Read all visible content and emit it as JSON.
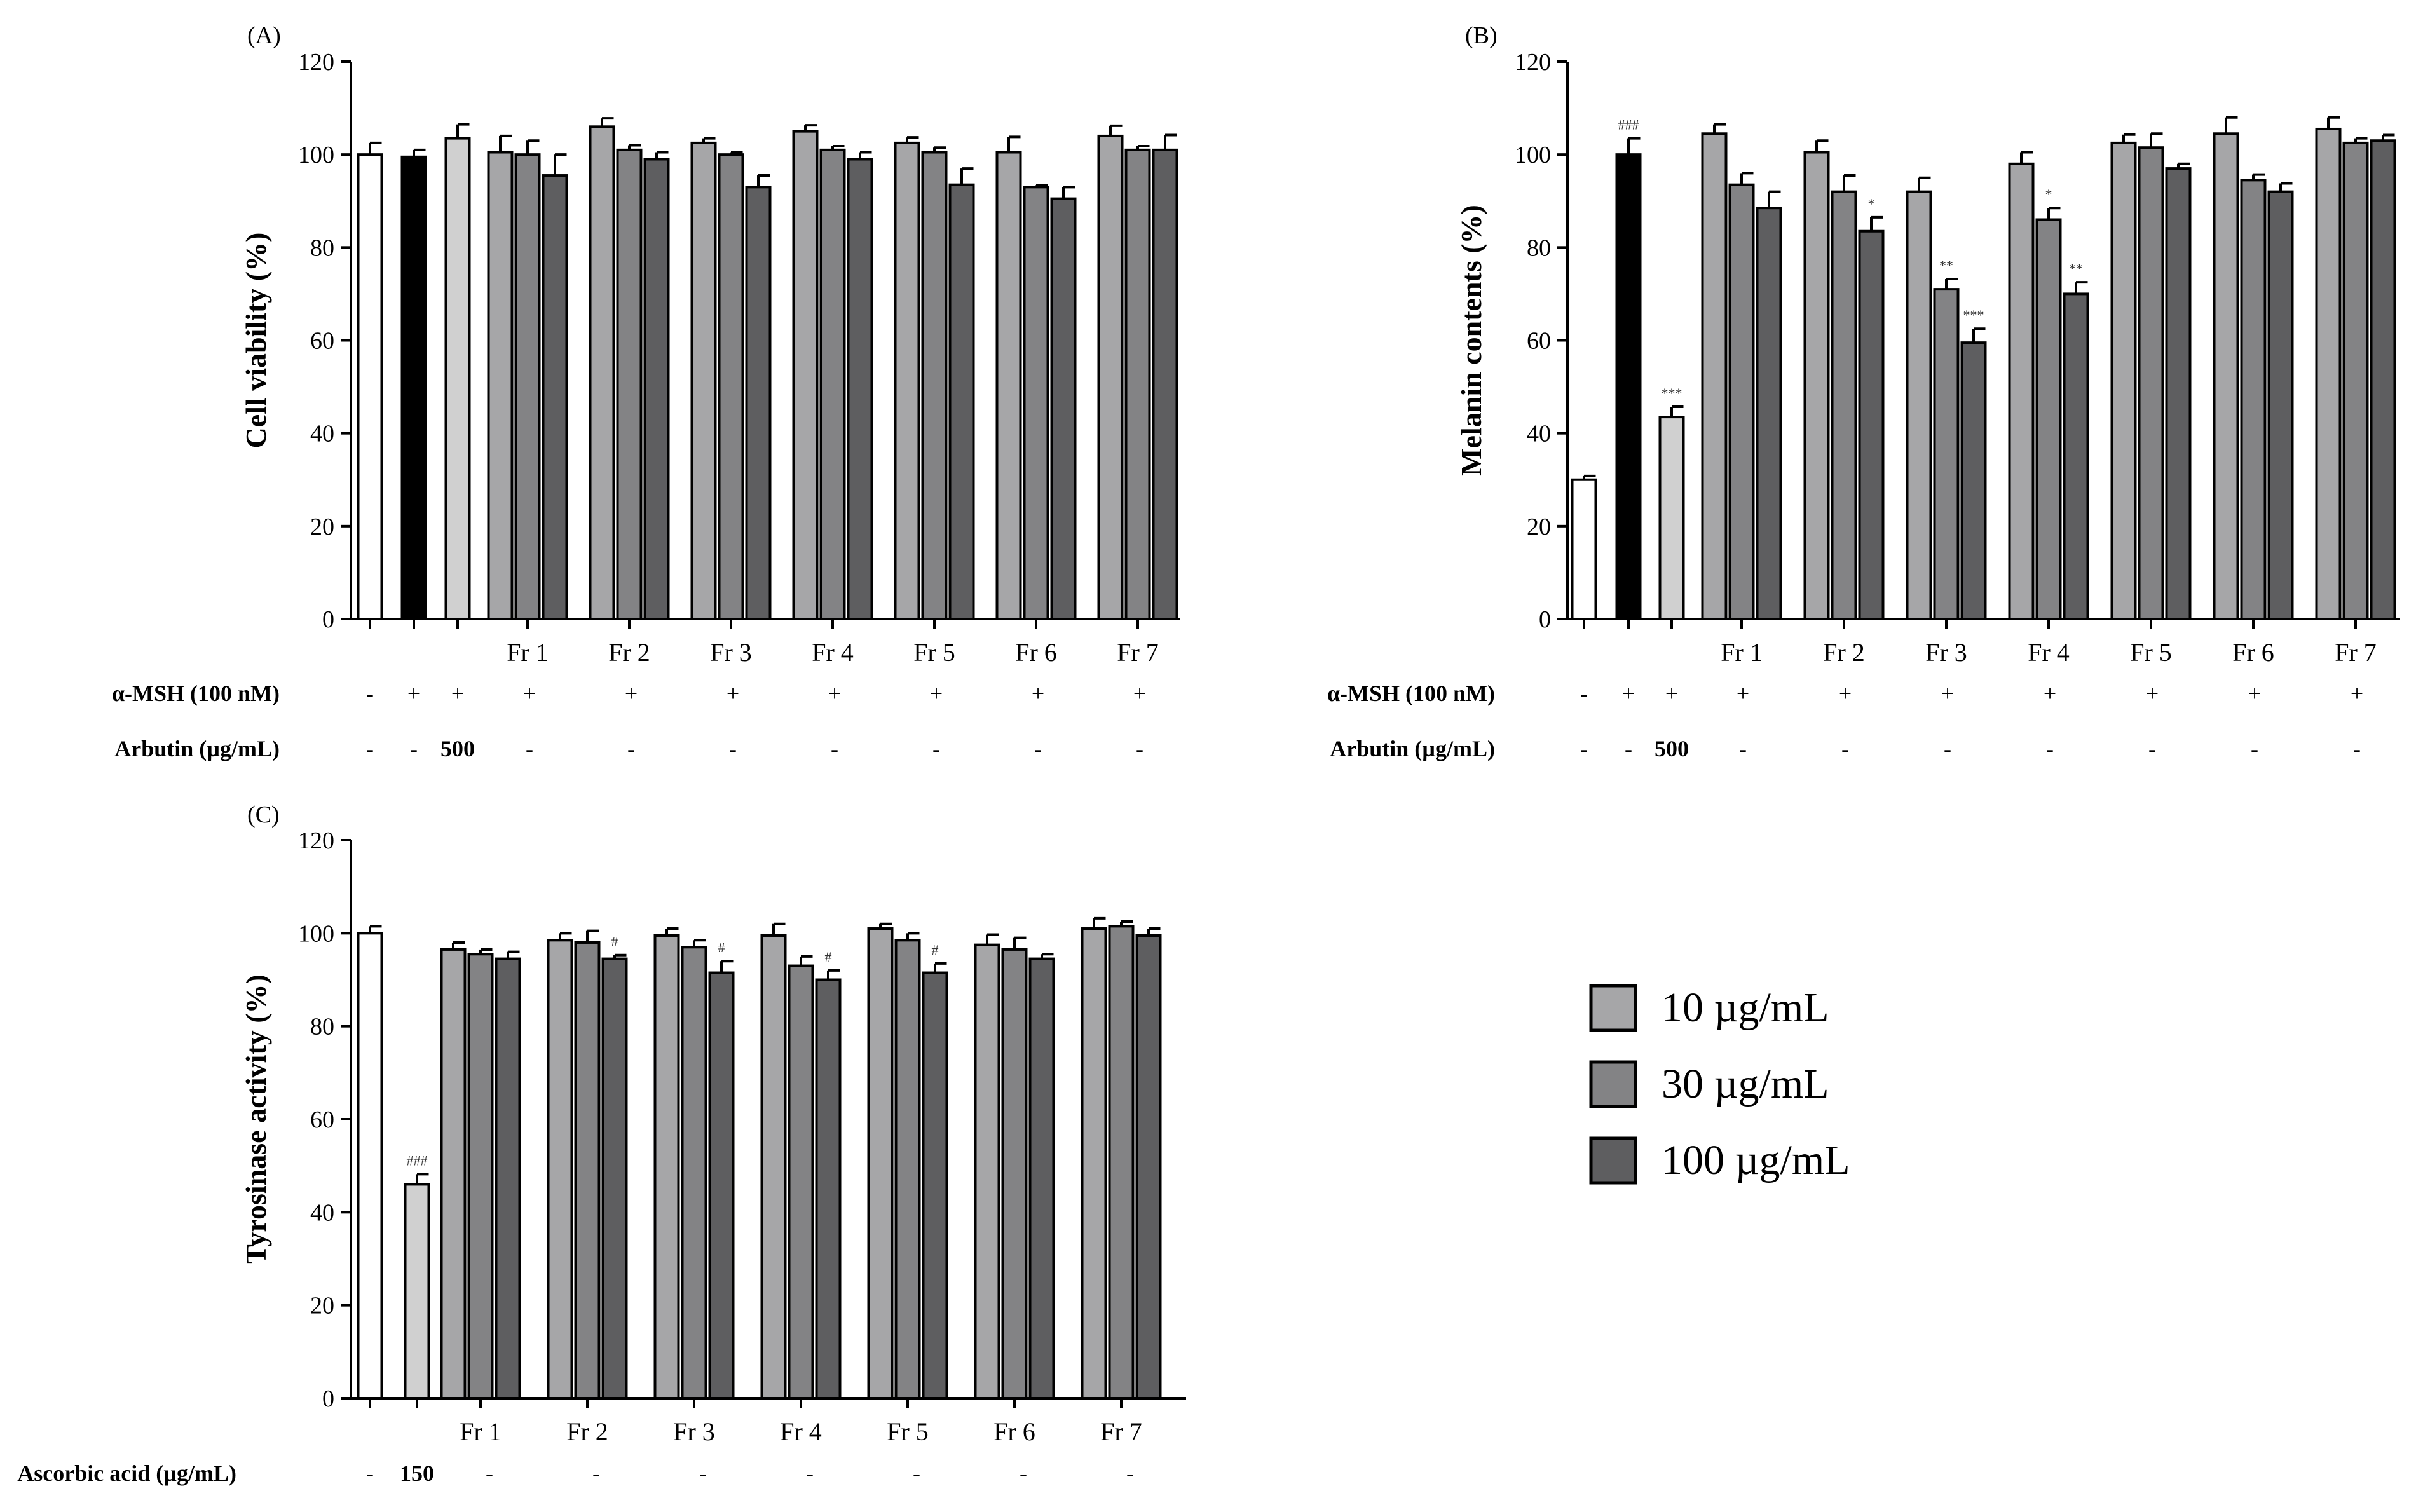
{
  "colors": {
    "control": "#ffffff",
    "msh": "#000000",
    "positive": "#d0d0d0",
    "c10": "#a6a6a8",
    "c30": "#838385",
    "c100": "#5e5e60",
    "axis": "#000000"
  },
  "legend": {
    "items": [
      {
        "label": "10 µg/mL",
        "color_key": "c10"
      },
      {
        "label": "30 µg/mL",
        "color_key": "c30"
      },
      {
        "label": "100 µg/mL",
        "color_key": "c100"
      }
    ]
  },
  "chart_data": [
    {
      "type": "bar",
      "panel_label": "(A)",
      "ylabel": "Cell viability (%)",
      "ylim": [
        0,
        120
      ],
      "yticks": [
        0,
        20,
        40,
        60,
        80,
        100,
        120
      ],
      "groups": [
        "Fr 1",
        "Fr 2",
        "Fr 3",
        "Fr 4",
        "Fr 5",
        "Fr 6",
        "Fr 7"
      ],
      "control_bars": [
        {
          "name": "control",
          "value": 100,
          "error": 2.5,
          "color_key": "control",
          "sig": ""
        },
        {
          "name": "alpha-MSH",
          "value": 99.5,
          "error": 1.5,
          "color_key": "msh",
          "sig": ""
        },
        {
          "name": "Arbutin 500",
          "value": 103.5,
          "error": 3.0,
          "color_key": "positive",
          "sig": ""
        }
      ],
      "series": [
        {
          "name": "10 µg/mL",
          "color_key": "c10",
          "values": [
            100.5,
            106,
            102.5,
            105,
            102.5,
            100.5,
            104
          ],
          "errors": [
            3.5,
            1.8,
            1.0,
            1.3,
            1.2,
            3.3,
            2.2
          ],
          "sig": [
            "",
            "",
            "",
            "",
            "",
            "",
            ""
          ]
        },
        {
          "name": "30 µg/mL",
          "color_key": "c30",
          "values": [
            100,
            101,
            100,
            101,
            100.5,
            93,
            101
          ],
          "errors": [
            3.0,
            1.0,
            0.5,
            0.8,
            1.0,
            0.4,
            0.8
          ],
          "sig": [
            "",
            "",
            "",
            "",
            "",
            "",
            ""
          ]
        },
        {
          "name": "100 µg/mL",
          "color_key": "c100",
          "values": [
            95.5,
            99,
            93,
            99,
            93.5,
            90.5,
            101
          ],
          "errors": [
            4.5,
            1.5,
            2.5,
            1.5,
            3.5,
            2.5,
            3.2
          ],
          "sig": [
            "",
            "",
            "",
            "",
            "",
            "",
            ""
          ]
        }
      ],
      "conditions": [
        {
          "label": "α-MSH (100 nM)",
          "values": [
            "-",
            "+",
            "+",
            "+",
            "+",
            "+",
            "+",
            "+",
            "+",
            "+"
          ]
        },
        {
          "label": "Arbutin (µg/mL)",
          "values": [
            "-",
            "-",
            "500",
            "-",
            "-",
            "-",
            "-",
            "-",
            "-",
            "-"
          ]
        }
      ]
    },
    {
      "type": "bar",
      "panel_label": "(B)",
      "ylabel": "Melanin contents (%)",
      "ylim": [
        0,
        120
      ],
      "yticks": [
        0,
        20,
        40,
        60,
        80,
        100,
        120
      ],
      "groups": [
        "Fr 1",
        "Fr 2",
        "Fr 3",
        "Fr 4",
        "Fr 5",
        "Fr 6",
        "Fr 7"
      ],
      "control_bars": [
        {
          "name": "control",
          "value": 30,
          "error": 0.8,
          "color_key": "control",
          "sig": ""
        },
        {
          "name": "alpha-MSH",
          "value": 100,
          "error": 3.5,
          "color_key": "msh",
          "sig": "###"
        },
        {
          "name": "Arbutin 500",
          "value": 43.5,
          "error": 2.2,
          "color_key": "positive",
          "sig": "***"
        }
      ],
      "series": [
        {
          "name": "10 µg/mL",
          "color_key": "c10",
          "values": [
            104.5,
            100.5,
            92,
            98,
            102.5,
            104.5,
            105.5
          ],
          "errors": [
            2.0,
            2.5,
            3.0,
            2.5,
            1.8,
            3.5,
            2.5
          ],
          "sig": [
            "",
            "",
            "",
            "",
            "",
            "",
            ""
          ]
        },
        {
          "name": "30 µg/mL",
          "color_key": "c30",
          "values": [
            93.5,
            92,
            71,
            86,
            101.5,
            94.5,
            102.5
          ],
          "errors": [
            2.5,
            3.5,
            2.2,
            2.5,
            3.0,
            1.2,
            1.0
          ],
          "sig": [
            "",
            "",
            "**",
            "*",
            "",
            "",
            ""
          ]
        },
        {
          "name": "100 µg/mL",
          "color_key": "c100",
          "values": [
            88.5,
            83.5,
            59.5,
            70,
            97,
            92,
            103
          ],
          "errors": [
            3.5,
            3.0,
            3.0,
            2.5,
            1.0,
            1.8,
            1.2
          ],
          "sig": [
            "",
            "*",
            "***",
            "**",
            "",
            "",
            ""
          ]
        }
      ],
      "conditions": [
        {
          "label": "α-MSH (100 nM)",
          "values": [
            "-",
            "+",
            "+",
            "+",
            "+",
            "+",
            "+",
            "+",
            "+",
            "+"
          ]
        },
        {
          "label": "Arbutin (µg/mL)",
          "values": [
            "-",
            "-",
            "500",
            "-",
            "-",
            "-",
            "-",
            "-",
            "-",
            "-"
          ]
        }
      ]
    },
    {
      "type": "bar",
      "panel_label": "(C)",
      "ylabel": "Tyrosinase activity (%)",
      "ylim": [
        0,
        120
      ],
      "yticks": [
        0,
        20,
        40,
        60,
        80,
        100,
        120
      ],
      "groups": [
        "Fr 1",
        "Fr 2",
        "Fr 3",
        "Fr 4",
        "Fr 5",
        "Fr 6",
        "Fr 7"
      ],
      "control_bars": [
        {
          "name": "control",
          "value": 100,
          "error": 1.5,
          "color_key": "control",
          "sig": ""
        },
        {
          "name": "Ascorbic acid 150",
          "value": 46,
          "error": 2.2,
          "color_key": "positive",
          "sig": "###"
        }
      ],
      "series": [
        {
          "name": "10 µg/mL",
          "color_key": "c10",
          "values": [
            96.5,
            98.5,
            99.5,
            99.5,
            101,
            97.5,
            101
          ],
          "errors": [
            1.5,
            1.5,
            1.5,
            2.5,
            1.0,
            2.2,
            2.2
          ],
          "sig": [
            "",
            "",
            "",
            "",
            "",
            "",
            ""
          ]
        },
        {
          "name": "30 µg/mL",
          "color_key": "c30",
          "values": [
            95.5,
            98,
            97,
            93,
            98.5,
            96.5,
            101.5
          ],
          "errors": [
            1.0,
            2.5,
            1.5,
            2.0,
            1.5,
            2.5,
            1.0
          ],
          "sig": [
            "",
            "",
            "",
            "",
            "",
            "",
            ""
          ]
        },
        {
          "name": "100 µg/mL",
          "color_key": "c100",
          "values": [
            94.5,
            94.5,
            91.5,
            90,
            91.5,
            94.5,
            99.5
          ],
          "errors": [
            1.5,
            0.8,
            2.5,
            2.0,
            2.0,
            1.0,
            1.5
          ],
          "sig": [
            "",
            "#",
            "#",
            "#",
            "#",
            "",
            ""
          ]
        }
      ],
      "conditions": [
        {
          "label": "Ascorbic acid (µg/mL)",
          "values": [
            "-",
            "150",
            "-",
            "-",
            "-",
            "-",
            "-",
            "-",
            "-"
          ]
        }
      ]
    }
  ]
}
